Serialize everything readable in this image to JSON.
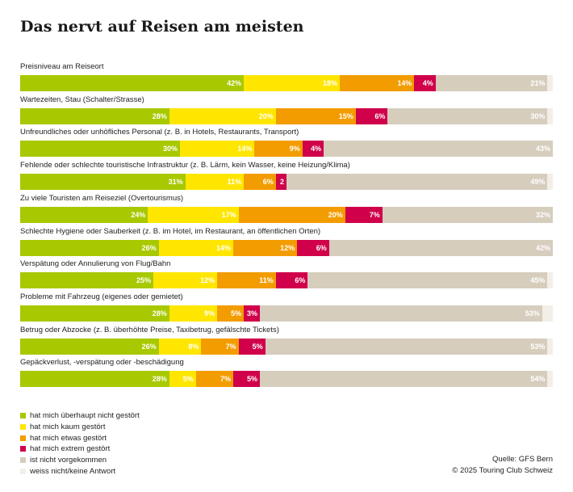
{
  "chart_data": {
    "type": "bar",
    "orientation": "horizontal",
    "stacked": true,
    "title": "Das nervt auf Reisen am meisten",
    "xlim": [
      0,
      100
    ],
    "grid": false,
    "legend_placement": "bottom-left",
    "categories": [
      "Preisniveau am Reiseort",
      "Wartezeiten, Stau (Schalter/Strasse)",
      "Unfreundliches oder unhöfliches Personal (z. B. in Hotels, Restaurants, Transport)",
      "Fehlende oder schlechte touristische Infrastruktur (z. B. Lärm, kein Wasser, keine Heizung/Klima)",
      "Zu viele Touristen am Reiseziel (Overtourismus)",
      "Schlechte Hygiene oder Sauberkeit (z. B. im Hotel, im Restaurant, an öffentlichen Orten)",
      "Verspätung oder Annulierung von Flug/Bahn",
      "Probleme mit Fahrzeug (eigenes oder gemietet)",
      "Betrug oder Abzocke (z. B. überhöhte Preise, Taxibetrug, gefälschte Tickets)",
      "Gepäckverlust, -verspätung oder -beschädigung"
    ],
    "series": [
      {
        "name": "hat mich überhaupt nicht gestört",
        "color": "#a8c800",
        "values": [
          42,
          28,
          30,
          31,
          24,
          26,
          25,
          28,
          26,
          28
        ],
        "labels": [
          "42%",
          "28%",
          "30%",
          "31%",
          "24%",
          "26%",
          "25%",
          "28%",
          "26%",
          "28%"
        ]
      },
      {
        "name": "hat mich kaum gestört",
        "color": "#ffe600",
        "values": [
          18,
          20,
          14,
          11,
          17,
          14,
          12,
          9,
          8,
          5
        ],
        "labels": [
          "18%",
          "20%",
          "14%",
          "11%",
          "17%",
          "14%",
          "12%",
          "9%",
          "8%",
          "5%"
        ]
      },
      {
        "name": "hat mich etwas gestört",
        "color": "#f39c00",
        "values": [
          14,
          15,
          9,
          6,
          20,
          12,
          11,
          5,
          7,
          7
        ],
        "labels": [
          "14%",
          "15%",
          "9%",
          "6%",
          "20%",
          "12%",
          "11%",
          "5%",
          "7%",
          "7%"
        ]
      },
      {
        "name": "hat mich extrem gestört",
        "color": "#d0004a",
        "values": [
          4,
          6,
          4,
          2,
          7,
          6,
          6,
          3,
          5,
          5
        ],
        "labels": [
          "4%",
          "6%",
          "4%",
          "2",
          "7%",
          "6%",
          "6%",
          "3%",
          "5%",
          "5%"
        ]
      },
      {
        "name": "ist nicht vorgekommen",
        "color": "#d6cdbd",
        "values": [
          21,
          30,
          43,
          49,
          32,
          42,
          45,
          53,
          53,
          54
        ],
        "labels": [
          "21%",
          "30%",
          "43%",
          "49%",
          "32%",
          "42%",
          "45%",
          "53%",
          "53%",
          "54%"
        ]
      },
      {
        "name": "weiss nicht/keine Antwort",
        "color": "#f2efe8",
        "values": [
          1,
          1,
          0,
          1,
          0,
          0,
          1,
          2,
          1,
          1
        ],
        "labels": [
          "",
          "",
          "",
          "",
          "",
          "",
          "",
          "",
          "",
          ""
        ]
      }
    ]
  },
  "source": {
    "line1": "Quelle: GFS Bern",
    "line2": "© 2025 Touring Club Schweiz"
  }
}
